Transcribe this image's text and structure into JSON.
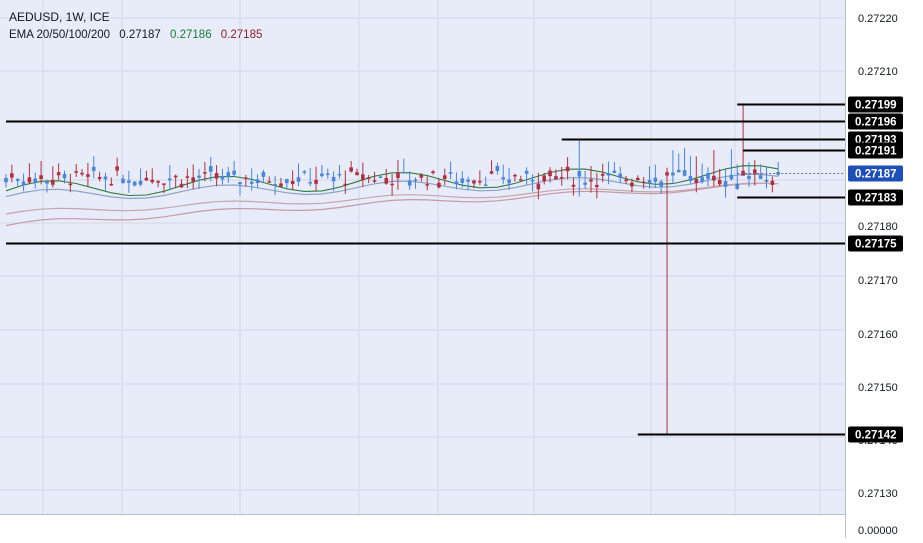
{
  "header": {
    "symbol_line": "AEDUSD, 1W, ICE",
    "indicator_label": "EMA 20/50/100/200",
    "indicator_values": [
      {
        "text": "0.27187",
        "color": "#131722"
      },
      {
        "text": "0.27186",
        "color": "#1b7a3a"
      },
      {
        "text": "0.27185",
        "color": "#8a1f2a"
      }
    ]
  },
  "colors": {
    "background": "#e8ecf8",
    "grid": "#d3d9e8",
    "up_candle": "#4a85dc",
    "down_candle": "#b0303f",
    "level_line": "#000000",
    "current_price_badge": "#1e4fb6",
    "ema_20": "#2e7d42",
    "ema_50": "#8aa3c6",
    "ema_100": "#c4a6ae",
    "ema_200": "#c59aa6"
  },
  "chart_data": {
    "type": "candlestick",
    "symbol": "AEDUSD",
    "timeframe": "1W",
    "y_axis_ticks": [
      "0.27220",
      "0.27210",
      "0.27180",
      "0.27170",
      "0.27160",
      "0.27150",
      "0.27140",
      "0.27130",
      "0.00000"
    ],
    "horizontal_levels": [
      {
        "label": "0.27199",
        "value": 0.27199,
        "from_week": 125
      },
      {
        "label": "0.27196",
        "value": 0.27196,
        "from_week": 0
      },
      {
        "label": "0.27193",
        "value": 0.27193,
        "from_week": 95
      },
      {
        "label": "0.27191",
        "value": 0.27191,
        "from_week": 126
      },
      {
        "label": "0.27183",
        "value": 0.27183,
        "from_week": 125
      },
      {
        "label": "0.27175",
        "value": 0.27175,
        "from_week": 0
      },
      {
        "label": "0.27142",
        "value": 0.27142,
        "from_week": 108
      }
    ],
    "current_price": {
      "label": "0.27187",
      "value": 0.27187
    },
    "extreme_wicks": [
      {
        "week": 113,
        "low": 0.27142,
        "high": 0.27188
      },
      {
        "week": 98,
        "low": 0.27183,
        "high": 0.27193
      },
      {
        "week": 126,
        "low": 0.27187,
        "high": 0.27199
      }
    ],
    "candle_band": {
      "weeks": 133,
      "typical_low": 0.27183,
      "typical_high": 0.27189
    },
    "ema": {
      "periods": [
        20,
        50,
        100,
        200
      ],
      "latest": [
        0.27187,
        0.27186,
        0.27185,
        null
      ]
    }
  }
}
